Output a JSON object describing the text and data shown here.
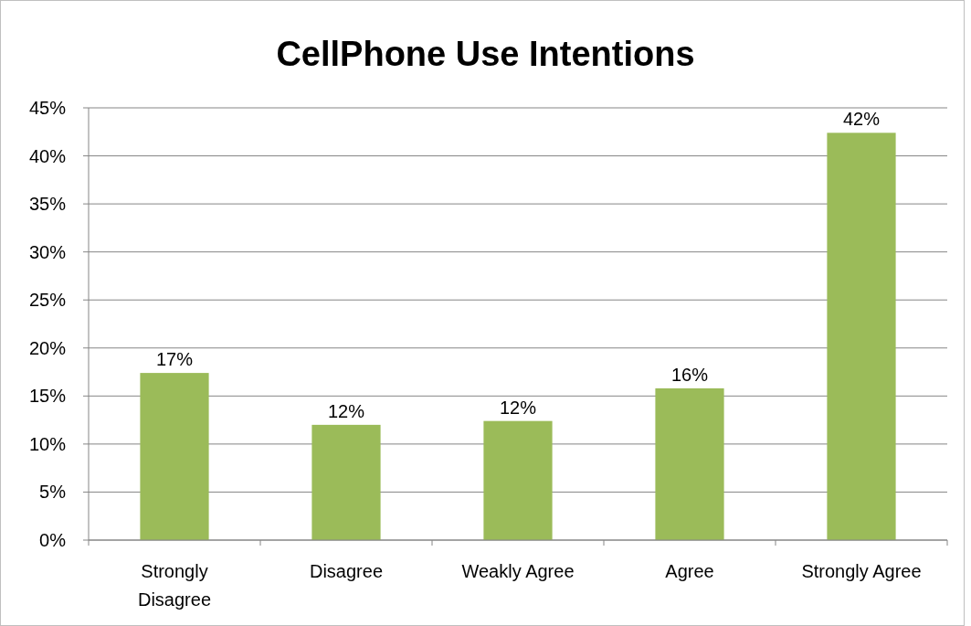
{
  "chart_data": {
    "type": "bar",
    "title": "CellPhone Use Intentions",
    "categories": [
      "Strongly Disagree",
      "Disagree",
      "Weakly Agree",
      "Agree",
      "Strongly Agree"
    ],
    "values": [
      17.4,
      12.0,
      12.4,
      15.8,
      42.4
    ],
    "value_labels": [
      "17%",
      "12%",
      "12%",
      "16%",
      "42%"
    ],
    "color": "#9bbb59",
    "ylim": [
      0,
      45
    ],
    "yticks": [
      {
        "value": 0,
        "label": "0%"
      },
      {
        "value": 5,
        "label": "5%"
      },
      {
        "value": 10,
        "label": "10%"
      },
      {
        "value": 15,
        "label": "15%"
      },
      {
        "value": 20,
        "label": "20%"
      },
      {
        "value": 25,
        "label": "25%"
      },
      {
        "value": 30,
        "label": "30%"
      },
      {
        "value": 35,
        "label": "35%"
      },
      {
        "value": 40,
        "label": "40%"
      },
      {
        "value": 45,
        "label": "45%"
      }
    ],
    "grid": "y"
  }
}
